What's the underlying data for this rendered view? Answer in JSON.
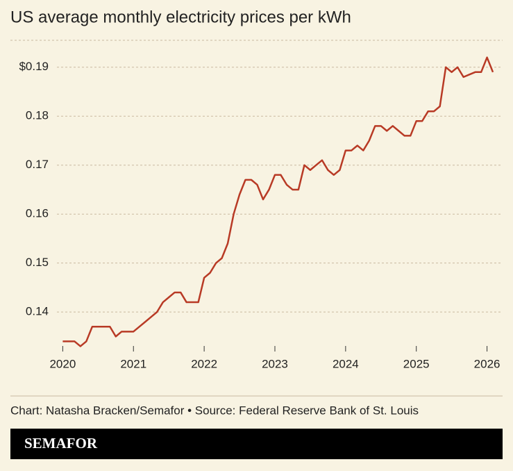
{
  "chart_data": {
    "type": "line",
    "title": "US average monthly electricity prices per kWh",
    "source": "Chart: Natasha Bracken/Semafor • Source: Federal Reserve Bank of St. Louis",
    "brand": "SEMAFOR",
    "x": [
      2020,
      2020.083,
      2020.167,
      2020.25,
      2020.333,
      2020.417,
      2020.5,
      2020.583,
      2020.667,
      2020.75,
      2020.833,
      2020.917,
      2021,
      2021.083,
      2021.167,
      2021.25,
      2021.333,
      2021.417,
      2021.5,
      2021.583,
      2021.667,
      2021.75,
      2021.833,
      2021.917,
      2022,
      2022.083,
      2022.167,
      2022.25,
      2022.333,
      2022.417,
      2022.5,
      2022.583,
      2022.667,
      2022.75,
      2022.833,
      2022.917,
      2023,
      2023.083,
      2023.167,
      2023.25,
      2023.333,
      2023.417,
      2023.5,
      2023.583,
      2023.667,
      2023.75,
      2023.833,
      2023.917,
      2024,
      2024.083,
      2024.167,
      2024.25,
      2024.333,
      2024.417,
      2024.5,
      2024.583,
      2024.667,
      2024.75,
      2024.833,
      2024.917,
      2025,
      2025.083,
      2025.167,
      2025.25,
      2025.333,
      2025.417,
      2025.5,
      2025.583,
      2025.667,
      2025.75,
      2025.833,
      2025.917,
      2026,
      2026.083
    ],
    "series": [
      {
        "color": "#b83a25",
        "values": [
          0.134,
          0.134,
          0.134,
          0.133,
          0.134,
          0.137,
          0.137,
          0.137,
          0.137,
          0.135,
          0.136,
          0.136,
          0.136,
          0.137,
          0.138,
          0.139,
          0.14,
          0.142,
          0.143,
          0.144,
          0.144,
          0.142,
          0.142,
          0.142,
          0.147,
          0.148,
          0.15,
          0.151,
          0.154,
          0.16,
          0.164,
          0.167,
          0.167,
          0.166,
          0.163,
          0.165,
          0.168,
          0.168,
          0.166,
          0.165,
          0.165,
          0.17,
          0.169,
          0.17,
          0.171,
          0.169,
          0.168,
          0.169,
          0.173,
          0.173,
          0.174,
          0.173,
          0.175,
          0.178,
          0.178,
          0.177,
          0.178,
          0.177,
          0.176,
          0.176,
          0.179,
          0.179,
          0.181,
          0.181,
          0.182,
          0.19,
          0.189,
          0.19,
          0.188,
          0.1885,
          0.189,
          0.189,
          0.192,
          0.189
        ]
      }
    ],
    "xlim": [
      2019.26,
      2026.22
    ],
    "xticks": [
      2020,
      2021,
      2022,
      2023,
      2024,
      2025,
      2026
    ],
    "ylim": [
      0.1325,
      0.1955
    ],
    "yticks": [
      0.14,
      0.15,
      0.16,
      0.17,
      0.18,
      {
        "value": 0.19,
        "label": "$0.19"
      }
    ],
    "grid": true
  }
}
